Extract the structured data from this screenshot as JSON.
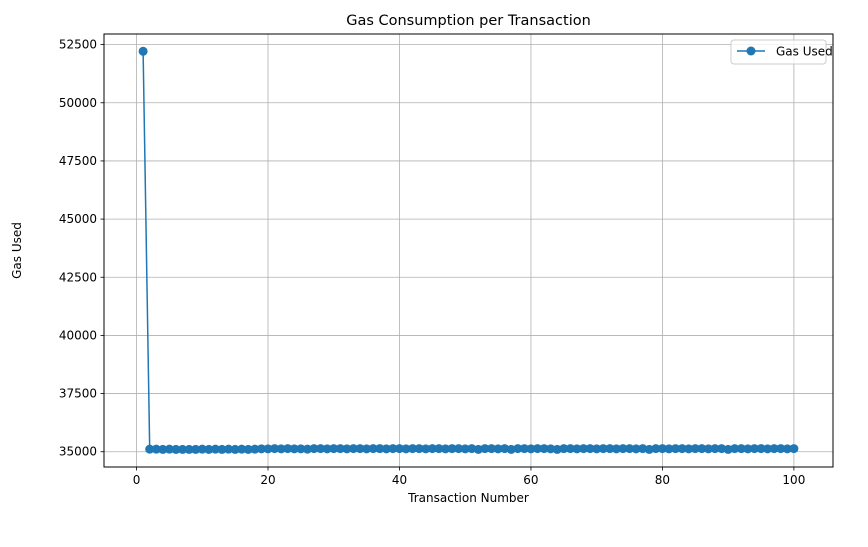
{
  "chart_data": {
    "type": "line",
    "title": "Gas Consumption per Transaction",
    "xlabel": "Transaction Number",
    "ylabel": "Gas Used",
    "xlim": [
      -4.95,
      105.95
    ],
    "ylim": [
      34344,
      52956
    ],
    "xticks": [
      0,
      20,
      40,
      60,
      80,
      100
    ],
    "yticks": [
      35000,
      37500,
      40000,
      42500,
      45000,
      47500,
      50000,
      52500
    ],
    "grid": true,
    "legend_position": "upper right",
    "series": [
      {
        "name": "Gas Used",
        "color": "#1f77b4",
        "marker": "circle",
        "x": [
          1,
          2,
          3,
          4,
          5,
          6,
          7,
          8,
          9,
          10,
          11,
          12,
          13,
          14,
          15,
          16,
          17,
          18,
          19,
          20,
          21,
          22,
          23,
          24,
          25,
          26,
          27,
          28,
          29,
          30,
          31,
          32,
          33,
          34,
          35,
          36,
          37,
          38,
          39,
          40,
          41,
          42,
          43,
          44,
          45,
          46,
          47,
          48,
          49,
          50,
          51,
          52,
          53,
          54,
          55,
          56,
          57,
          58,
          59,
          60,
          61,
          62,
          63,
          64,
          65,
          66,
          67,
          68,
          69,
          70,
          71,
          72,
          73,
          74,
          75,
          76,
          77,
          78,
          79,
          80,
          81,
          82,
          83,
          84,
          85,
          86,
          87,
          88,
          89,
          90,
          91,
          92,
          93,
          94,
          95,
          96,
          97,
          98,
          99,
          100
        ],
        "y": [
          52212,
          35112,
          35112,
          35100,
          35112,
          35100,
          35100,
          35100,
          35100,
          35112,
          35100,
          35112,
          35100,
          35112,
          35100,
          35112,
          35100,
          35112,
          35124,
          35124,
          35136,
          35124,
          35136,
          35124,
          35124,
          35112,
          35136,
          35136,
          35124,
          35136,
          35136,
          35124,
          35136,
          35136,
          35124,
          35136,
          35136,
          35124,
          35136,
          35136,
          35124,
          35136,
          35136,
          35124,
          35136,
          35136,
          35124,
          35136,
          35136,
          35124,
          35136,
          35100,
          35136,
          35136,
          35124,
          35136,
          35100,
          35136,
          35136,
          35124,
          35136,
          35136,
          35124,
          35100,
          35136,
          35136,
          35124,
          35136,
          35136,
          35124,
          35136,
          35136,
          35124,
          35136,
          35136,
          35124,
          35136,
          35100,
          35136,
          35136,
          35124,
          35136,
          35136,
          35124,
          35136,
          35136,
          35124,
          35136,
          35136,
          35100,
          35136,
          35136,
          35124,
          35136,
          35136,
          35124,
          35136,
          35136,
          35124,
          35136
        ]
      }
    ]
  }
}
